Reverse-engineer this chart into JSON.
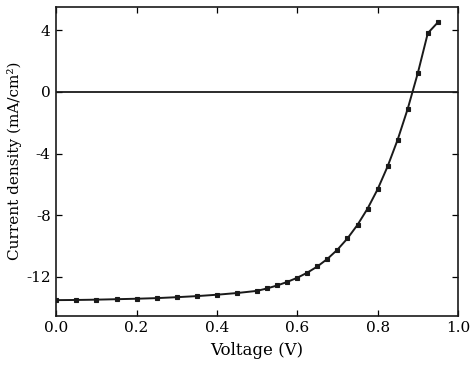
{
  "title": "",
  "xlabel": "Voltage (V)",
  "ylabel": "Current density (mA/cm²)",
  "xlim": [
    0.0,
    1.0
  ],
  "ylim": [
    -14.5,
    5.5
  ],
  "xticks": [
    0.0,
    0.2,
    0.4,
    0.6,
    0.8,
    1.0
  ],
  "yticks": [
    -12,
    -8,
    -4,
    0,
    4
  ],
  "line_color": "#1a1a1a",
  "marker": "s",
  "marker_size": 3.5,
  "marker_color": "#1a1a1a",
  "line_width": 1.4,
  "background_color": "#ffffff",
  "voltage_data": [
    0.0,
    0.05,
    0.1,
    0.15,
    0.2,
    0.25,
    0.3,
    0.35,
    0.4,
    0.45,
    0.5,
    0.525,
    0.55,
    0.575,
    0.6,
    0.625,
    0.65,
    0.675,
    0.7,
    0.725,
    0.75,
    0.775,
    0.8,
    0.825,
    0.85,
    0.875,
    0.9,
    0.925,
    0.95
  ],
  "current_data": [
    -13.5,
    -13.49,
    -13.47,
    -13.44,
    -13.41,
    -13.37,
    -13.31,
    -13.24,
    -13.15,
    -13.04,
    -12.9,
    -12.74,
    -12.55,
    -12.32,
    -12.05,
    -11.72,
    -11.32,
    -10.83,
    -10.23,
    -9.5,
    -8.62,
    -7.57,
    -6.32,
    -4.83,
    -3.1,
    -1.1,
    1.2,
    3.8,
    4.5
  ],
  "axhline_y": 0,
  "axhline_color": "#1a1a1a",
  "axhline_lw": 1.3,
  "xlabel_fontsize": 12,
  "ylabel_fontsize": 11,
  "tick_fontsize": 11,
  "font_family": "serif"
}
